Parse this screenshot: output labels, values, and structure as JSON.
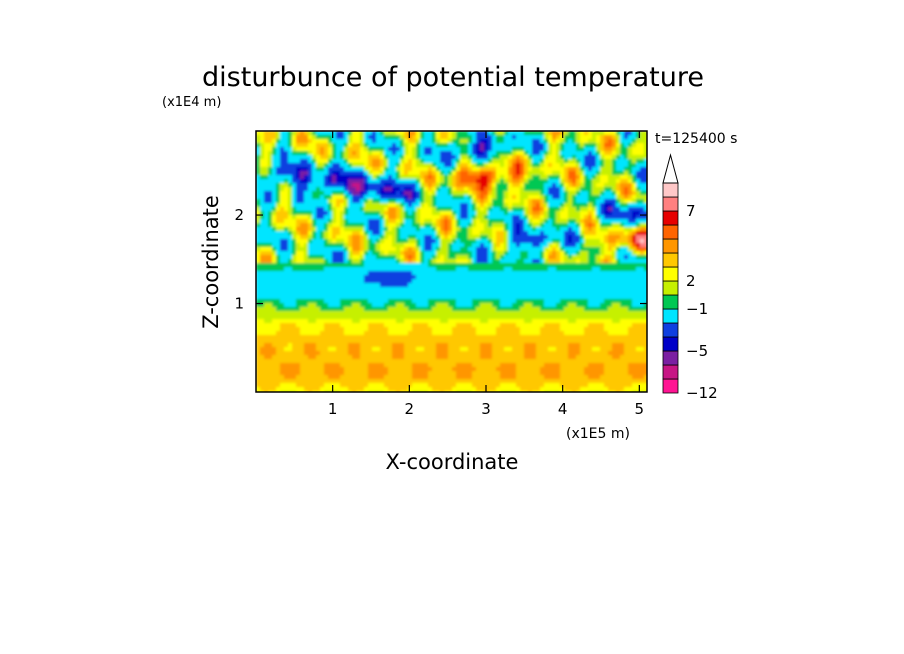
{
  "chart_data": {
    "type": "heatmap",
    "title": "disturbunce of potential temperature",
    "time_label": "t=125400 s",
    "xlabel": "X-coordinate",
    "ylabel": "Z-coordinate",
    "x_scale_label": "(x1E5 m)",
    "y_scale_label": "(x1E4 m)",
    "xlim": [
      0,
      5.1
    ],
    "ylim": [
      0,
      2.95
    ],
    "x_ticks": [
      "1",
      "2",
      "3",
      "4",
      "5"
    ],
    "y_ticks": [
      "1",
      "2"
    ],
    "colorbar": {
      "labels": [
        "7",
        "2",
        "−1",
        "−5",
        "−12"
      ],
      "colors": [
        "#ff1493",
        "#c71585",
        "#7b1fa2",
        "#0000c8",
        "#0f3fe0",
        "#00e5ff",
        "#00c853",
        "#c6f000",
        "#ffff00",
        "#ffc800",
        "#ff9600",
        "#ff6400",
        "#e60000",
        "#ff8080",
        "#ffc8c8"
      ],
      "extend": "max"
    },
    "features": [
      {
        "kind": "band",
        "z": 0.15,
        "h": 0.22,
        "value": 1.5
      },
      {
        "kind": "band",
        "z": 0.5,
        "h": 0.4,
        "value": 2.5
      },
      {
        "kind": "band",
        "z": 0.85,
        "h": 0.18,
        "value": 0.5
      },
      {
        "kind": "band",
        "z": 1.05,
        "h": 0.25,
        "value": -1.5
      },
      {
        "kind": "band",
        "z": 1.3,
        "h": 0.18,
        "value": -0.8
      },
      {
        "kind": "blob",
        "x": 0.35,
        "z": 2.45,
        "value": -4.5
      },
      {
        "kind": "blob",
        "x": 1.05,
        "z": 2.35,
        "value": -5
      },
      {
        "kind": "blob",
        "x": 1.65,
        "z": 2.25,
        "value": -4.5
      },
      {
        "kind": "blob",
        "x": 2.9,
        "z": 2.75,
        "value": -5
      },
      {
        "kind": "blob",
        "x": 3.55,
        "z": 1.7,
        "value": -4
      },
      {
        "kind": "blob",
        "x": 3.05,
        "z": 2.45,
        "value": 6
      },
      {
        "kind": "blob",
        "x": 1.75,
        "z": 1.3,
        "value": -3
      },
      {
        "kind": "blob",
        "x": 4.95,
        "z": 2.0,
        "value": -4
      },
      {
        "kind": "blob",
        "x": 4.95,
        "z": 1.7,
        "value": 5
      }
    ]
  }
}
